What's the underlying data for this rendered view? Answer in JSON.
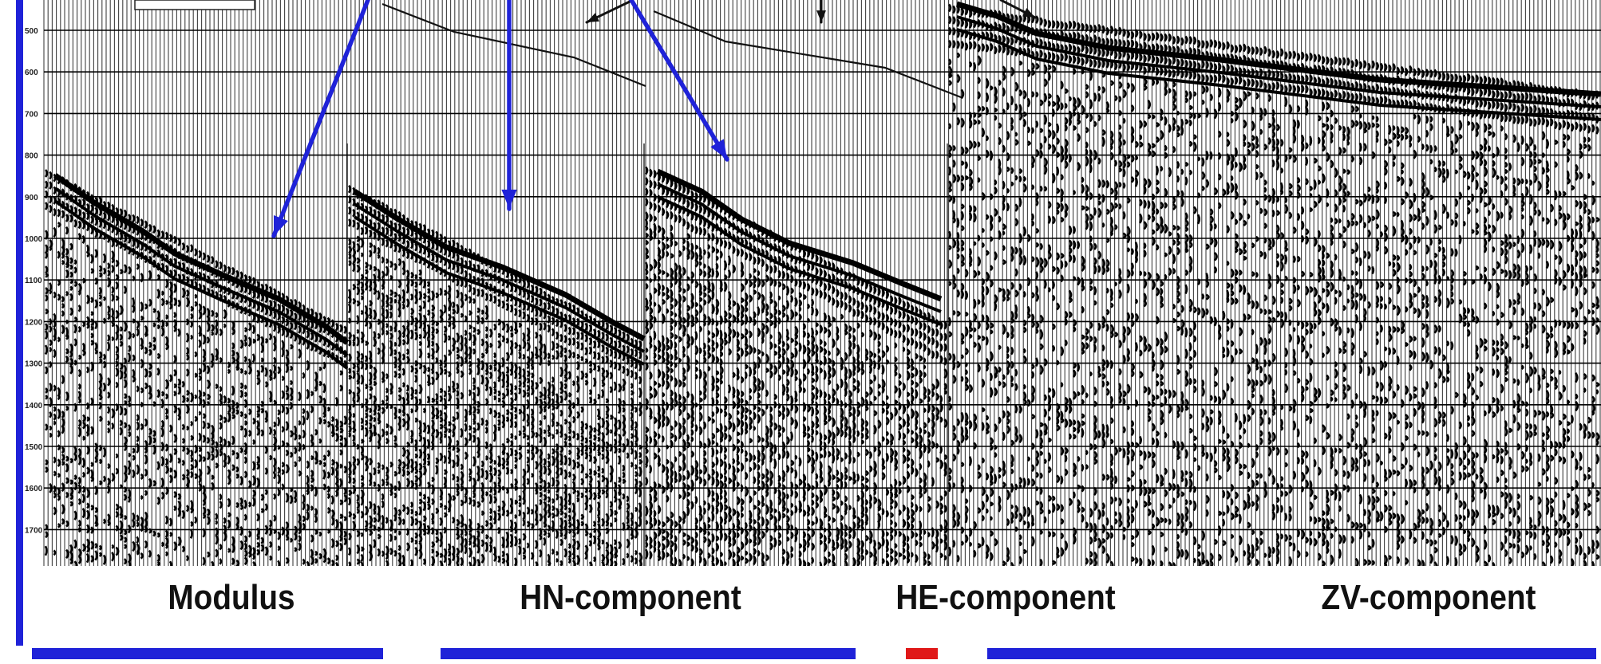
{
  "panels": [
    {
      "name": "Modulus"
    },
    {
      "name": "HN-component"
    },
    {
      "name": "HE-component"
    },
    {
      "name": "ZV-component"
    }
  ],
  "y_ticks": [
    "500",
    "600",
    "700",
    "800",
    "900",
    "1000",
    "1100",
    "1200",
    "1300",
    "1400",
    "1500",
    "1600",
    "1700"
  ],
  "colors": {
    "accent_blue": "#1f22d8",
    "caption_blue": "#1f22d8",
    "caption_red": "#e01818",
    "trace": "#000000"
  },
  "caption_cut": {
    "visible": "partially cut off at bottom edge; text not legible",
    "segments_colors": [
      "#1f22d8",
      "#e01818",
      "#1f22d8"
    ]
  }
}
